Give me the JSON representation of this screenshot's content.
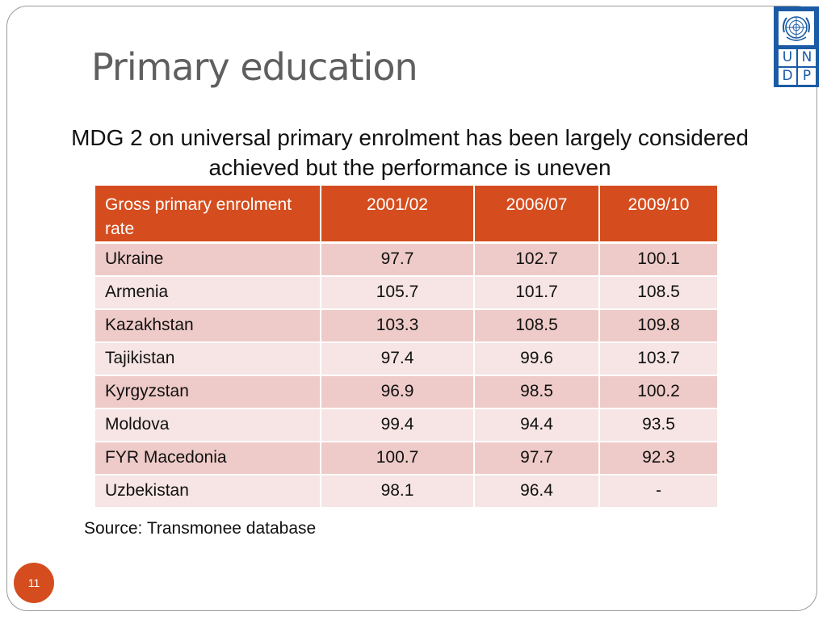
{
  "slide": {
    "title": "Primary education",
    "subtitle": "MDG 2 on universal primary enrolment has been largely considered achieved but the performance is uneven",
    "source": "Source: Transmonee database",
    "page_number": "11"
  },
  "logo": {
    "letters": [
      "U",
      "N",
      "D",
      "P"
    ],
    "color": "#1b5ba6",
    "icon": "un-emblem-icon"
  },
  "table": {
    "header": [
      "Gross primary enrolment rate",
      "2001/02",
      "2006/07",
      "2009/10"
    ],
    "rows": [
      [
        "Ukraine",
        "97.7",
        "102.7",
        "100.1"
      ],
      [
        "Armenia",
        "105.7",
        "101.7",
        "108.5"
      ],
      [
        "Kazakhstan",
        "103.3",
        "108.5",
        "109.8"
      ],
      [
        "Tajikistan",
        "97.4",
        "99.6",
        "103.7"
      ],
      [
        "Kyrgyzstan",
        "96.9",
        "98.5",
        "100.2"
      ],
      [
        "Moldova",
        "99.4",
        "94.4",
        "93.5"
      ],
      [
        "FYR Macedonia",
        "100.7",
        "97.7",
        "92.3"
      ],
      [
        "Uzbekistan",
        "98.1",
        "96.4",
        "-"
      ]
    ]
  },
  "colors": {
    "accent": "#d54d1e",
    "row_dark": "#eecbc8",
    "row_light": "#f6e5e4",
    "title": "#5f5f5f"
  }
}
